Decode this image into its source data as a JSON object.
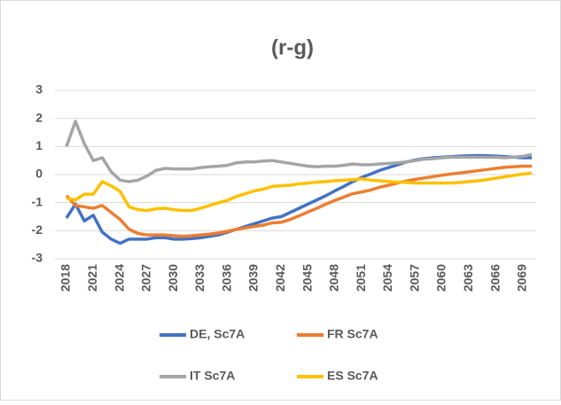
{
  "chart_data": {
    "type": "line",
    "title": "(r-g)",
    "x": [
      2018,
      2019,
      2020,
      2021,
      2022,
      2023,
      2024,
      2025,
      2026,
      2027,
      2028,
      2029,
      2030,
      2031,
      2032,
      2033,
      2034,
      2035,
      2036,
      2037,
      2038,
      2039,
      2040,
      2041,
      2042,
      2043,
      2044,
      2045,
      2046,
      2047,
      2048,
      2049,
      2050,
      2051,
      2052,
      2053,
      2054,
      2055,
      2056,
      2057,
      2058,
      2059,
      2060,
      2061,
      2062,
      2063,
      2064,
      2065,
      2066,
      2067,
      2068,
      2069,
      2070
    ],
    "xlim": [
      2018,
      2070
    ],
    "xticks": [
      2018,
      2021,
      2024,
      2027,
      2030,
      2033,
      2036,
      2039,
      2042,
      2045,
      2048,
      2051,
      2054,
      2057,
      2060,
      2063,
      2066,
      2069
    ],
    "ylim": [
      -3,
      3
    ],
    "yticks": [
      -3,
      -2,
      -1,
      0,
      1,
      2,
      3
    ],
    "grid": true,
    "series": [
      {
        "name": "DE, Sc7A",
        "color": "#4472c4",
        "values": [
          -1.55,
          -1.05,
          -1.65,
          -1.45,
          -2.05,
          -2.3,
          -2.45,
          -2.3,
          -2.3,
          -2.3,
          -2.25,
          -2.25,
          -2.3,
          -2.3,
          -2.28,
          -2.25,
          -2.2,
          -2.15,
          -2.05,
          -1.95,
          -1.85,
          -1.75,
          -1.65,
          -1.55,
          -1.5,
          -1.35,
          -1.2,
          -1.05,
          -0.9,
          -0.75,
          -0.58,
          -0.42,
          -0.25,
          -0.1,
          0.02,
          0.15,
          0.25,
          0.35,
          0.45,
          0.52,
          0.57,
          0.6,
          0.62,
          0.64,
          0.66,
          0.67,
          0.68,
          0.67,
          0.66,
          0.64,
          0.62,
          0.6,
          0.6
        ]
      },
      {
        "name": "FR Sc7A",
        "color": "#ed7d31",
        "values": [
          -0.75,
          -1.1,
          -1.15,
          -1.2,
          -1.1,
          -1.35,
          -1.6,
          -1.95,
          -2.1,
          -2.15,
          -2.15,
          -2.15,
          -2.18,
          -2.2,
          -2.18,
          -2.15,
          -2.12,
          -2.08,
          -2.02,
          -1.95,
          -1.9,
          -1.85,
          -1.8,
          -1.72,
          -1.7,
          -1.6,
          -1.47,
          -1.33,
          -1.2,
          -1.05,
          -0.92,
          -0.8,
          -0.68,
          -0.62,
          -0.55,
          -0.45,
          -0.38,
          -0.3,
          -0.23,
          -0.17,
          -0.12,
          -0.07,
          -0.02,
          0.02,
          0.06,
          0.1,
          0.14,
          0.18,
          0.22,
          0.26,
          0.28,
          0.3,
          0.3
        ]
      },
      {
        "name": "IT Sc7A",
        "color": "#a5a5a5",
        "values": [
          1.0,
          1.9,
          1.1,
          0.5,
          0.6,
          0.1,
          -0.2,
          -0.25,
          -0.2,
          -0.05,
          0.15,
          0.22,
          0.2,
          0.2,
          0.2,
          0.25,
          0.28,
          0.3,
          0.33,
          0.42,
          0.45,
          0.45,
          0.48,
          0.5,
          0.45,
          0.4,
          0.35,
          0.3,
          0.28,
          0.3,
          0.3,
          0.33,
          0.38,
          0.35,
          0.35,
          0.38,
          0.4,
          0.42,
          0.45,
          0.5,
          0.55,
          0.57,
          0.6,
          0.62,
          0.62,
          0.62,
          0.62,
          0.62,
          0.62,
          0.6,
          0.62,
          0.65,
          0.72
        ]
      },
      {
        "name": "ES Sc7A",
        "color": "#ffc000",
        "values": [
          -0.85,
          -0.9,
          -0.7,
          -0.7,
          -0.25,
          -0.4,
          -0.6,
          -1.15,
          -1.25,
          -1.28,
          -1.22,
          -1.2,
          -1.25,
          -1.28,
          -1.28,
          -1.2,
          -1.1,
          -1.0,
          -0.92,
          -0.78,
          -0.68,
          -0.58,
          -0.52,
          -0.42,
          -0.4,
          -0.38,
          -0.33,
          -0.3,
          -0.27,
          -0.25,
          -0.22,
          -0.2,
          -0.18,
          -0.15,
          -0.2,
          -0.22,
          -0.25,
          -0.27,
          -0.28,
          -0.3,
          -0.3,
          -0.3,
          -0.3,
          -0.3,
          -0.28,
          -0.25,
          -0.22,
          -0.18,
          -0.13,
          -0.08,
          -0.03,
          0.02,
          0.05
        ]
      }
    ]
  }
}
